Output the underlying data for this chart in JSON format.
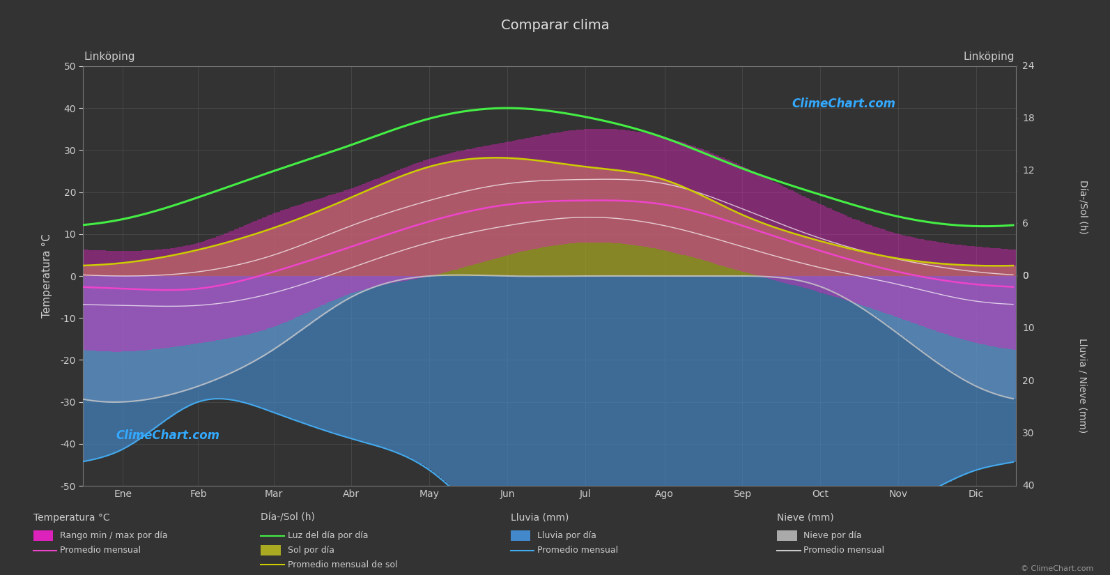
{
  "title": "Comparar clima",
  "city_left": "Linköping",
  "city_right": "Linköping",
  "months": [
    "Ene",
    "Feb",
    "Mar",
    "Abr",
    "May",
    "Jun",
    "Jul",
    "Ago",
    "Sep",
    "Oct",
    "Nov",
    "Dic"
  ],
  "ylabel_left": "Temperatura °C",
  "ylabel_right_top": "Día-/Sol (h)",
  "ylabel_right_bottom": "Lluvia / Nieve (mm)",
  "ylim_left": [
    -50,
    50
  ],
  "background_color": "#333333",
  "grid_color": "#555555",
  "text_color": "#cccccc",
  "days_in_month": [
    31,
    28,
    31,
    30,
    31,
    30,
    31,
    31,
    30,
    31,
    30,
    31
  ],
  "temp_avg_monthly": [
    -3.0,
    -3.0,
    1.0,
    7.0,
    13.0,
    17.0,
    18.0,
    17.0,
    12.0,
    6.0,
    1.0,
    -2.0
  ],
  "temp_max_monthly": [
    0.0,
    1.0,
    5.0,
    12.0,
    18.0,
    22.0,
    23.0,
    22.0,
    16.0,
    9.0,
    4.0,
    1.0
  ],
  "temp_min_monthly": [
    -7.0,
    -7.0,
    -4.0,
    2.0,
    8.0,
    12.0,
    14.0,
    12.0,
    7.0,
    2.0,
    -2.0,
    -6.0
  ],
  "temp_max_daily_max": [
    6.0,
    8.0,
    15.0,
    21.0,
    28.0,
    32.0,
    35.0,
    33.0,
    26.0,
    17.0,
    10.0,
    7.0
  ],
  "temp_min_daily_min": [
    -18.0,
    -16.0,
    -12.0,
    -4.0,
    0.0,
    5.0,
    8.0,
    6.0,
    1.0,
    -4.0,
    -10.0,
    -16.0
  ],
  "daylight_monthly": [
    6.5,
    9.0,
    12.0,
    15.0,
    18.0,
    19.2,
    18.2,
    15.8,
    12.3,
    9.3,
    6.8,
    5.7
  ],
  "sunshine_monthly": [
    1.5,
    3.0,
    5.5,
    9.0,
    12.5,
    13.5,
    12.5,
    11.0,
    7.0,
    4.0,
    2.0,
    1.2
  ],
  "rain_monthly_mm": [
    33,
    24,
    26,
    31,
    37,
    50,
    57,
    61,
    49,
    47,
    44,
    37
  ],
  "snow_monthly_mm": [
    24,
    21,
    14,
    4,
    0,
    0,
    0,
    0,
    0,
    2,
    11,
    21
  ],
  "rain_avg_monthly_mm": [
    33,
    24,
    26,
    31,
    37,
    50,
    57,
    61,
    49,
    47,
    44,
    37
  ],
  "snow_avg_monthly_mm": [
    24,
    21,
    14,
    4,
    0,
    0,
    0,
    0,
    0,
    2,
    11,
    21
  ],
  "watermark_text": "ClimeChart.com",
  "copyright_text": "© ClimeChart.com",
  "color_temp_bar": "#dd22bb",
  "color_temp_avg": "#ee44cc",
  "color_temp_maxmin": "#ffffff",
  "color_daylight": "#44ee44",
  "color_sunshine_bar": "#aaaa22",
  "color_sunshine_avg": "#cccc00",
  "color_rain_bar": "#4488cc",
  "color_rain_avg": "#44aaee",
  "color_snow_bar": "#aaaaaa",
  "color_snow_avg": "#cccccc"
}
